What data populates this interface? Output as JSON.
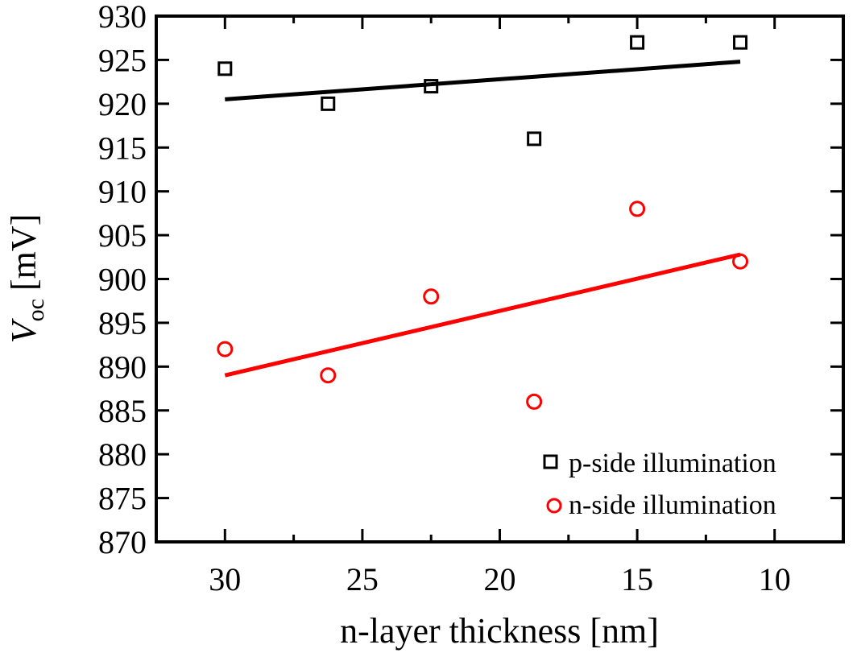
{
  "chart_data": {
    "type": "scatter",
    "title": "",
    "xlabel": "n-layer thickness [nm]",
    "ylabel": {
      "symbol": "V",
      "subscript": "oc",
      "unit": "[mV]"
    },
    "xlim": [
      32.5,
      7.5
    ],
    "ylim": [
      870,
      930
    ],
    "x_reversed": true,
    "xticks": [
      30,
      25,
      20,
      15,
      10
    ],
    "xtick_labels": [
      "30",
      "25",
      "20",
      "15",
      "10"
    ],
    "yticks": [
      870,
      875,
      880,
      885,
      890,
      895,
      900,
      905,
      910,
      915,
      920,
      925,
      930
    ],
    "ytick_labels": [
      "870",
      "875",
      "880",
      "885",
      "890",
      "895",
      "900",
      "905",
      "910",
      "915",
      "920",
      "925",
      "930"
    ],
    "grid": false,
    "legend_position": "bottom-right",
    "series": [
      {
        "name": "p-side illumination",
        "marker": "square",
        "color": "#000000",
        "x": [
          30,
          26.25,
          22.5,
          18.75,
          15,
          11.25
        ],
        "y": [
          924,
          920,
          922,
          916,
          927,
          927
        ],
        "fit": {
          "x": [
            30,
            11.25
          ],
          "y": [
            920.5,
            924.8
          ]
        }
      },
      {
        "name": "n-side illumination",
        "marker": "circle",
        "color": "#ff0000",
        "x": [
          30,
          26.25,
          22.5,
          18.75,
          15,
          11.25
        ],
        "y": [
          892,
          889,
          898,
          886,
          908,
          902
        ],
        "fit": {
          "x": [
            30,
            11.25
          ],
          "y": [
            889.0,
            902.8
          ]
        }
      }
    ]
  }
}
